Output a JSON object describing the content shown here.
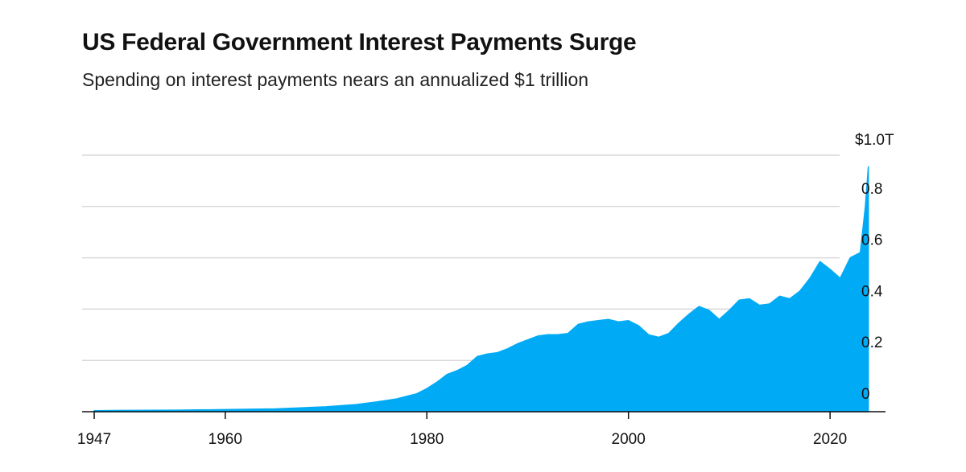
{
  "title": "US Federal Government Interest Payments Surge",
  "subtitle": "Spending on interest payments nears an annualized $1 trillion",
  "colors": {
    "area": "#00aaf5",
    "grid": "#d9d9d9",
    "axis": "#111111",
    "text": "#111111"
  },
  "chart_data": {
    "type": "area",
    "title": "US Federal Government Interest Payments Surge",
    "subtitle": "Spending on interest payments nears an annualized $1 trillion",
    "xlabel": "",
    "ylabel": "",
    "xlim": [
      1945.8,
      2025.5
    ],
    "ylim": [
      0,
      1.0
    ],
    "grid": true,
    "y_axis_side": "right",
    "x_ticks": [
      1947,
      1960,
      1980,
      2000,
      2020
    ],
    "x_tick_labels": [
      "1947",
      "1960",
      "1980",
      "2000",
      "2020"
    ],
    "y_ticks": [
      0,
      0.2,
      0.4,
      0.6,
      0.8,
      1.0
    ],
    "y_tick_labels": [
      "0",
      "0.2",
      "0.4",
      "0.6",
      "0.8",
      "$1.0T"
    ],
    "series": [
      {
        "x": [
          1947,
          1950,
          1955,
          1960,
          1965,
          1970,
          1973,
          1975,
          1977,
          1979,
          1980,
          1981,
          1982,
          1983,
          1984,
          1985,
          1986,
          1987,
          1988,
          1989,
          1990,
          1991,
          1992,
          1993,
          1994,
          1995,
          1996,
          1997,
          1998,
          1999,
          2000,
          2001,
          2002,
          2003,
          2004,
          2005,
          2006,
          2007,
          2008,
          2009,
          2010,
          2011,
          2012,
          2013,
          2014,
          2015,
          2016,
          2017,
          2018,
          2019,
          2020,
          2021,
          2022,
          2023,
          2023.5,
          2023.8
        ],
        "values": [
          0.004,
          0.005,
          0.006,
          0.008,
          0.011,
          0.019,
          0.028,
          0.038,
          0.05,
          0.07,
          0.09,
          0.115,
          0.145,
          0.16,
          0.18,
          0.215,
          0.225,
          0.23,
          0.245,
          0.265,
          0.28,
          0.295,
          0.3,
          0.3,
          0.305,
          0.34,
          0.35,
          0.355,
          0.36,
          0.35,
          0.355,
          0.335,
          0.3,
          0.29,
          0.305,
          0.345,
          0.38,
          0.41,
          0.395,
          0.36,
          0.395,
          0.435,
          0.44,
          0.415,
          0.42,
          0.45,
          0.44,
          0.47,
          0.52,
          0.585,
          0.555,
          0.52,
          0.6,
          0.62,
          0.8,
          0.955
        ]
      }
    ]
  }
}
